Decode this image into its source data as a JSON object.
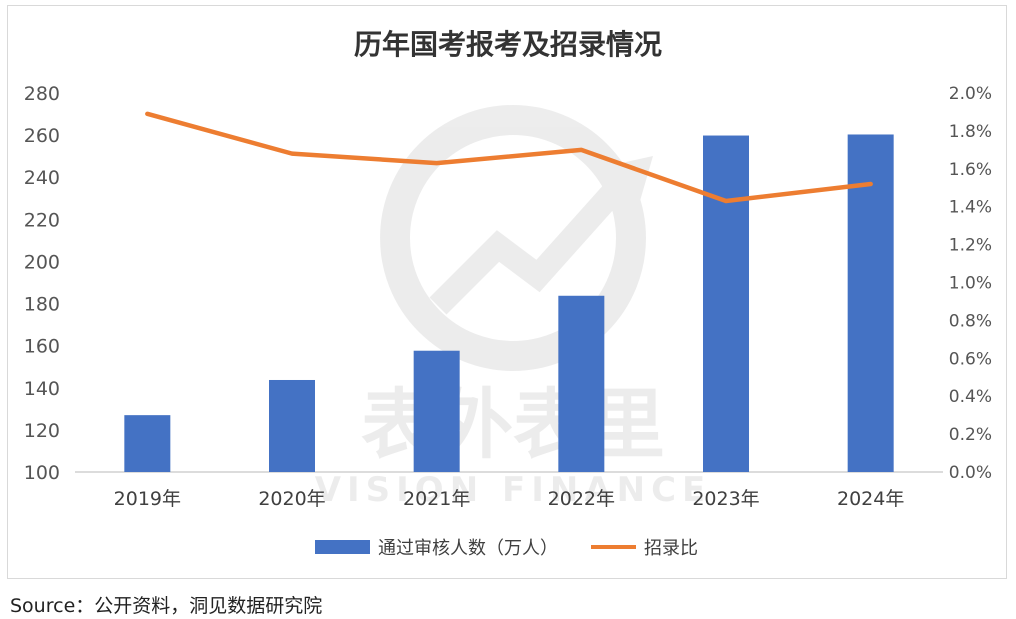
{
  "chart_data": {
    "type": "bar",
    "title": "历年国考报考及招录情况",
    "categories": [
      "2019年",
      "2020年",
      "2021年",
      "2022年",
      "2023年",
      "2024年"
    ],
    "series": [
      {
        "name": "通过审核人数（万人）",
        "type": "bar",
        "axis": "left",
        "values": [
          127,
          143.7,
          157.6,
          183.7,
          259.8,
          260.3
        ],
        "color": "#4472c4"
      },
      {
        "name": "招录比",
        "type": "line",
        "axis": "right",
        "values": [
          0.0189,
          0.0168,
          0.0163,
          0.017,
          0.0143,
          0.0152
        ],
        "color": "#ed7d31"
      }
    ],
    "y_left": {
      "min": 100,
      "max": 280,
      "step": 20,
      "tick_labels": [
        "100",
        "120",
        "140",
        "160",
        "180",
        "200",
        "220",
        "240",
        "260",
        "280"
      ]
    },
    "y_right": {
      "min": 0,
      "max": 0.02,
      "step": 0.002,
      "tick_labels": [
        "0.0%",
        "0.2%",
        "0.4%",
        "0.6%",
        "0.8%",
        "1.0%",
        "1.2%",
        "1.4%",
        "1.6%",
        "1.8%",
        "2.0%"
      ]
    },
    "grid": false,
    "legend_position": "bottom"
  },
  "watermark": {
    "text_cn": "表外表里",
    "text_en": "VISION FINANCE"
  },
  "source": "Source：公开资料，洞见数据研究院"
}
